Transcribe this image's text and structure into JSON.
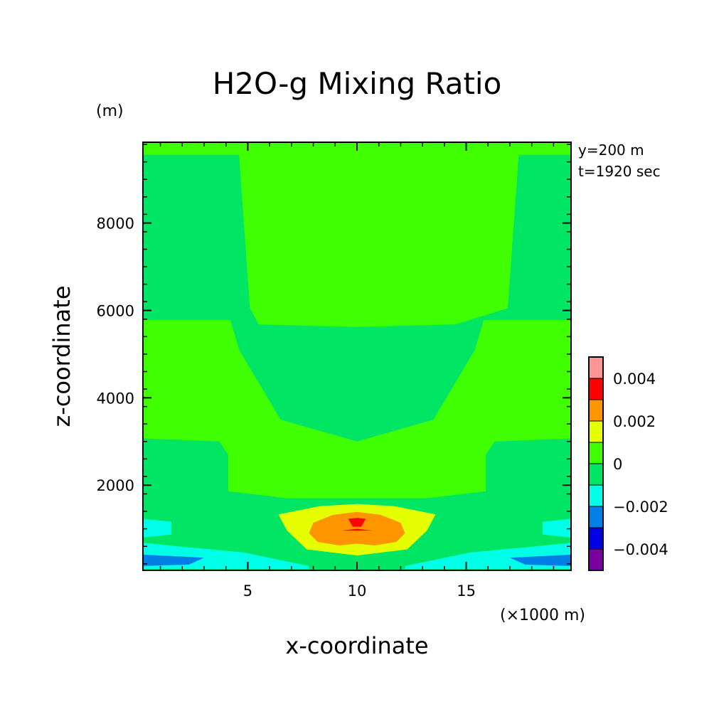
{
  "chart_data": {
    "type": "contour",
    "title": "H2O-g Mixing Ratio",
    "ylabel": "z-coordinate",
    "yunit": "(m)",
    "xlabel": "x-coordinate",
    "xunit": "(×1000 m)",
    "info": [
      "y=200 m",
      "t=1920 sec"
    ],
    "xlim": [
      0.2,
      19.8
    ],
    "ylim": [
      50,
      9850
    ],
    "xticks": [
      5,
      10,
      15
    ],
    "yticks": [
      2000,
      4000,
      6000,
      8000
    ],
    "grid": false,
    "colorbar": {
      "levels": [
        -0.005,
        -0.004,
        -0.003,
        -0.002,
        -0.001,
        0,
        0.001,
        0.002,
        0.003,
        0.004,
        0.005
      ],
      "colors": [
        "#7a00a0",
        "#0000e6",
        "#0080e6",
        "#00ffe6",
        "#00e664",
        "#40ff00",
        "#e6ff00",
        "#ff9600",
        "#ff0000",
        "#ff9696"
      ],
      "tick_values": [
        0.004,
        0.002,
        0,
        -0.002,
        -0.004
      ],
      "tick_labels": [
        "0.004",
        "0.002",
        "0",
        "−0.002",
        "−0.004"
      ]
    },
    "regions": [
      {
        "level_range": [
          0,
          0.001
        ],
        "color": "#40ff00",
        "shape": [
          [
            0.2,
            9850
          ],
          [
            19.8,
            9850
          ],
          [
            19.8,
            9560
          ],
          [
            17.4,
            9560
          ],
          [
            16.9,
            6050
          ],
          [
            14.5,
            5680
          ],
          [
            10,
            5620
          ],
          [
            5.5,
            5680
          ],
          [
            5.1,
            6050
          ],
          [
            4.6,
            9560
          ],
          [
            0.2,
            9560
          ]
        ]
      },
      {
        "level_range": [
          0,
          0.001
        ],
        "color": "#40ff00",
        "shape": [
          [
            0.2,
            5780
          ],
          [
            4.2,
            5780
          ],
          [
            4.6,
            5100
          ],
          [
            6.5,
            3500
          ],
          [
            10,
            3000
          ],
          [
            13.5,
            3500
          ],
          [
            15.4,
            5100
          ],
          [
            15.8,
            5780
          ],
          [
            19.8,
            5780
          ],
          [
            19.8,
            3070
          ],
          [
            16.3,
            3000
          ],
          [
            15.9,
            2700
          ],
          [
            15.9,
            1860
          ],
          [
            13.2,
            1700
          ],
          [
            10,
            1700
          ],
          [
            6.8,
            1700
          ],
          [
            4.1,
            1860
          ],
          [
            4.1,
            2700
          ],
          [
            3.7,
            3000
          ],
          [
            0.2,
            3070
          ]
        ]
      },
      {
        "level_range": [
          -0.002,
          -0.001
        ],
        "color": "#00ffe6",
        "shape": [
          [
            0.2,
            1230
          ],
          [
            1.5,
            1160
          ],
          [
            1.5,
            870
          ],
          [
            0.2,
            800
          ]
        ]
      },
      {
        "level_range": [
          -0.002,
          -0.001
        ],
        "color": "#00ffe6",
        "shape": [
          [
            0.2,
            680
          ],
          [
            1.8,
            600
          ],
          [
            4.8,
            460
          ],
          [
            7.8,
            150
          ],
          [
            7.8,
            80
          ],
          [
            0.2,
            80
          ]
        ]
      },
      {
        "level_range": [
          -0.002,
          -0.001
        ],
        "color": "#00ffe6",
        "shape": [
          [
            19.8,
            1230
          ],
          [
            18.5,
            1160
          ],
          [
            18.5,
            870
          ],
          [
            19.8,
            800
          ]
        ]
      },
      {
        "level_range": [
          -0.002,
          -0.001
        ],
        "color": "#00ffe6",
        "shape": [
          [
            19.8,
            680
          ],
          [
            18.2,
            600
          ],
          [
            15.2,
            460
          ],
          [
            12.2,
            150
          ],
          [
            12.2,
            80
          ],
          [
            19.8,
            80
          ]
        ]
      },
      {
        "level_range": [
          -0.003,
          -0.002
        ],
        "color": "#0080e6",
        "shape": [
          [
            0.2,
            410
          ],
          [
            3,
            340
          ],
          [
            2.3,
            180
          ],
          [
            0.2,
            150
          ]
        ]
      },
      {
        "level_range": [
          -0.003,
          -0.002
        ],
        "color": "#0080e6",
        "shape": [
          [
            19.8,
            410
          ],
          [
            17,
            340
          ],
          [
            17.7,
            180
          ],
          [
            19.8,
            150
          ]
        ]
      },
      {
        "level_range": [
          0.001,
          0.002
        ],
        "color": "#e6ff00",
        "shape": [
          [
            8.3,
            1520
          ],
          [
            10,
            1570
          ],
          [
            11.7,
            1520
          ],
          [
            13.6,
            1330
          ],
          [
            13.2,
            960
          ],
          [
            12.3,
            530
          ],
          [
            10,
            390
          ],
          [
            7.7,
            530
          ],
          [
            6.8,
            960
          ],
          [
            6.4,
            1330
          ]
        ]
      },
      {
        "level_range": [
          0.002,
          0.003
        ],
        "color": "#ff9600",
        "shape": [
          [
            8.9,
            1320
          ],
          [
            10,
            1390
          ],
          [
            11.1,
            1320
          ],
          [
            12,
            1140
          ],
          [
            12.2,
            900
          ],
          [
            11.8,
            700
          ],
          [
            10.8,
            620
          ],
          [
            10,
            660
          ],
          [
            9.2,
            620
          ],
          [
            8.2,
            700
          ],
          [
            7.8,
            900
          ],
          [
            8,
            1140
          ]
        ]
      },
      {
        "level_range": [
          0.003,
          0.004
        ],
        "color": "#ff0000",
        "shape": [
          [
            9.6,
            1230
          ],
          [
            10,
            1250
          ],
          [
            10.4,
            1230
          ],
          [
            10.2,
            1050
          ],
          [
            9.8,
            1050
          ]
        ]
      },
      {
        "level_range": [
          0.003,
          0.004
        ],
        "color": "#ff0000",
        "shape": [
          [
            9.3,
            960
          ],
          [
            10.7,
            960
          ],
          [
            10,
            1000
          ]
        ]
      }
    ]
  }
}
